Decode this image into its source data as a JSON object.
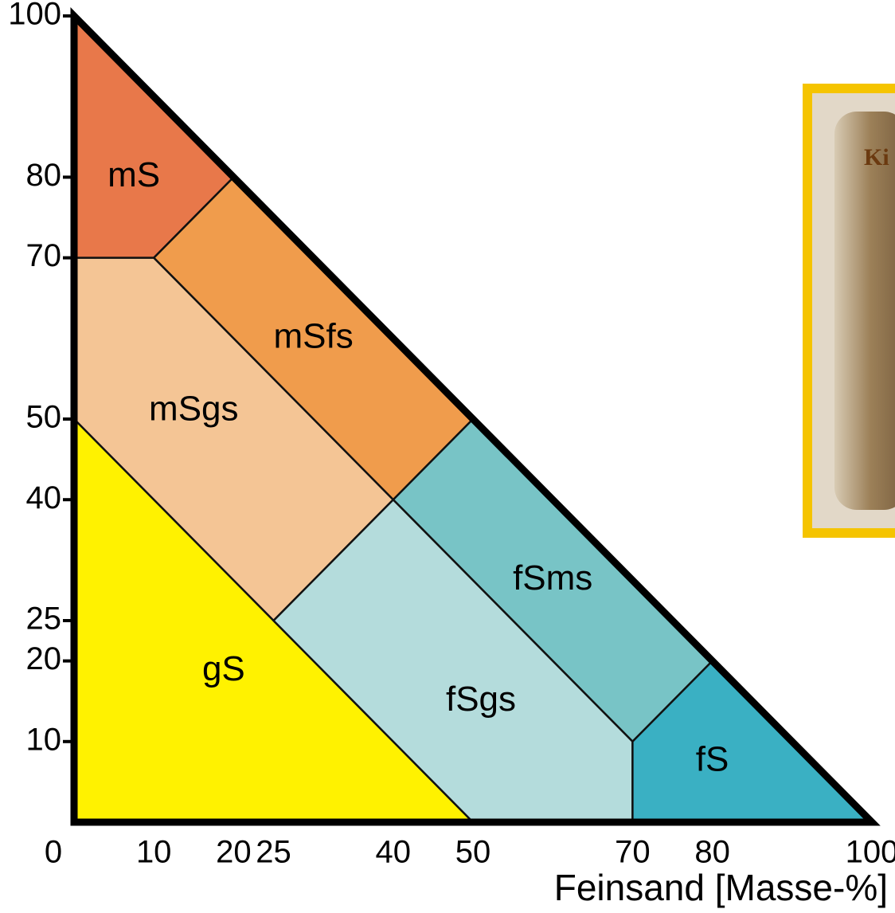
{
  "chart_data": {
    "type": "region",
    "x_label": "Feinsand [Masse-%]",
    "xlim": [
      0,
      100
    ],
    "ylim": [
      0,
      100
    ],
    "xticks": [
      0,
      10,
      20,
      25,
      40,
      50,
      70,
      80,
      100
    ],
    "yticks": [
      10,
      20,
      25,
      40,
      50,
      70,
      80,
      100
    ],
    "regions": [
      {
        "name": "mS",
        "color": "#e8784a",
        "x": [
          0,
          20,
          10,
          0
        ],
        "y": [
          100,
          80,
          70,
          70
        ]
      },
      {
        "name": "mSfs",
        "color": "#f09c4c",
        "x": [
          20,
          50,
          40,
          10
        ],
        "y": [
          80,
          50,
          40,
          70
        ]
      },
      {
        "name": "mSgs",
        "color": "#f4c595",
        "x": [
          0,
          10,
          40,
          25,
          0
        ],
        "y": [
          70,
          70,
          40,
          25,
          50
        ]
      },
      {
        "name": "gS",
        "color": "#fff200",
        "x": [
          0,
          25,
          50,
          0
        ],
        "y": [
          50,
          25,
          0,
          0
        ]
      },
      {
        "name": "fSms",
        "color": "#78c4c6",
        "x": [
          50,
          80,
          70,
          40
        ],
        "y": [
          50,
          20,
          10,
          40
        ]
      },
      {
        "name": "fSgs",
        "color": "#b4dcdc",
        "x": [
          25,
          40,
          70,
          70,
          50
        ],
        "y": [
          25,
          40,
          10,
          0,
          0
        ]
      },
      {
        "name": "fS",
        "color": "#3ab0c3",
        "x": [
          70,
          80,
          100,
          70
        ],
        "y": [
          10,
          20,
          0,
          0
        ]
      }
    ],
    "photo_caption": "Ki"
  }
}
